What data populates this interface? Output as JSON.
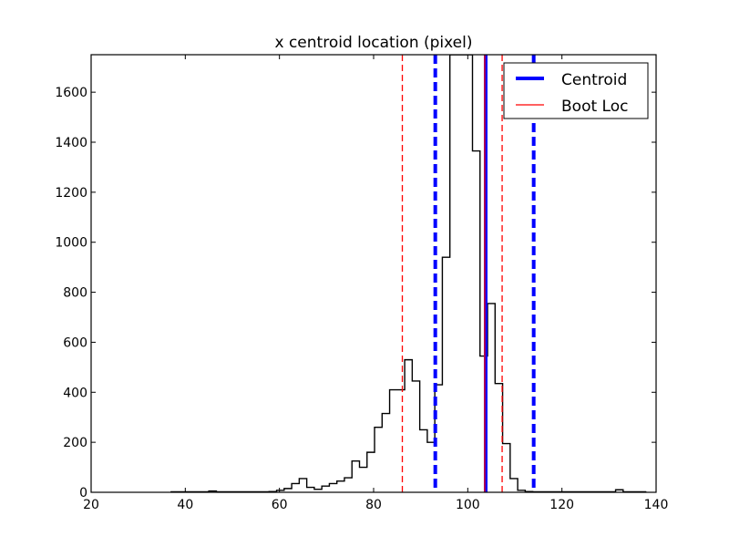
{
  "chart_data": {
    "type": "histogram",
    "title": "x centroid location (pixel)",
    "xlabel": "",
    "ylabel": "",
    "xlim": [
      20,
      140
    ],
    "ylim": [
      0,
      1750
    ],
    "x_ticks": [
      20,
      40,
      60,
      80,
      100,
      120,
      140
    ],
    "y_ticks": [
      0,
      200,
      400,
      600,
      800,
      1000,
      1200,
      1400,
      1600
    ],
    "grid": false,
    "legend_position": "top-right",
    "histogram": {
      "color": "#000000",
      "bin_edges": [
        37.0,
        38.6,
        40.2,
        41.8,
        43.4,
        45.0,
        46.6,
        48.2,
        49.8,
        51.4,
        53.0,
        54.6,
        56.2,
        57.8,
        59.4,
        61.0,
        62.6,
        64.2,
        65.8,
        67.4,
        69.0,
        70.6,
        72.2,
        73.8,
        75.4,
        77.0,
        78.6,
        80.2,
        81.8,
        83.4,
        85.0,
        86.6,
        88.2,
        89.8,
        91.4,
        93.0,
        94.6,
        96.2,
        97.8,
        99.4,
        101.0,
        102.6,
        104.2,
        105.8,
        107.4,
        109.0,
        110.6,
        112.2,
        113.8,
        115.4,
        117.0,
        118.6,
        120.2,
        121.8,
        123.4,
        125.0,
        126.6,
        128.2,
        129.8,
        131.4,
        133.0,
        134.6,
        136.2,
        137.8
      ],
      "counts": [
        2,
        2,
        2,
        2,
        2,
        5,
        2,
        2,
        2,
        2,
        2,
        2,
        2,
        3,
        8,
        15,
        35,
        55,
        20,
        12,
        25,
        35,
        45,
        58,
        125,
        100,
        160,
        260,
        315,
        410,
        410,
        530,
        445,
        250,
        200,
        430,
        940,
        1750,
        1750,
        1750,
        1365,
        545,
        755,
        435,
        195,
        55,
        8,
        3,
        2,
        2,
        2,
        2,
        2,
        2,
        2,
        2,
        2,
        2,
        2,
        10,
        2,
        2,
        2
      ]
    },
    "series": [
      {
        "name": "Centroid",
        "kind": "vline",
        "color": "#0000ff",
        "style": "solid",
        "x": 103.8
      },
      {
        "name": "Boot Loc",
        "kind": "vline",
        "color": "#ff0000",
        "style": "solid",
        "x": 103.6
      }
    ],
    "interval_lines": [
      {
        "color": "#0000ff",
        "style": "dashed",
        "x": [
          93.1,
          114.0
        ]
      },
      {
        "color": "#ff0000",
        "style": "dashed",
        "x": [
          86.1,
          107.3
        ]
      }
    ],
    "legend": [
      {
        "label": "Centroid",
        "color": "#0000ff"
      },
      {
        "label": "Boot Loc",
        "color": "#ff0000"
      }
    ]
  }
}
